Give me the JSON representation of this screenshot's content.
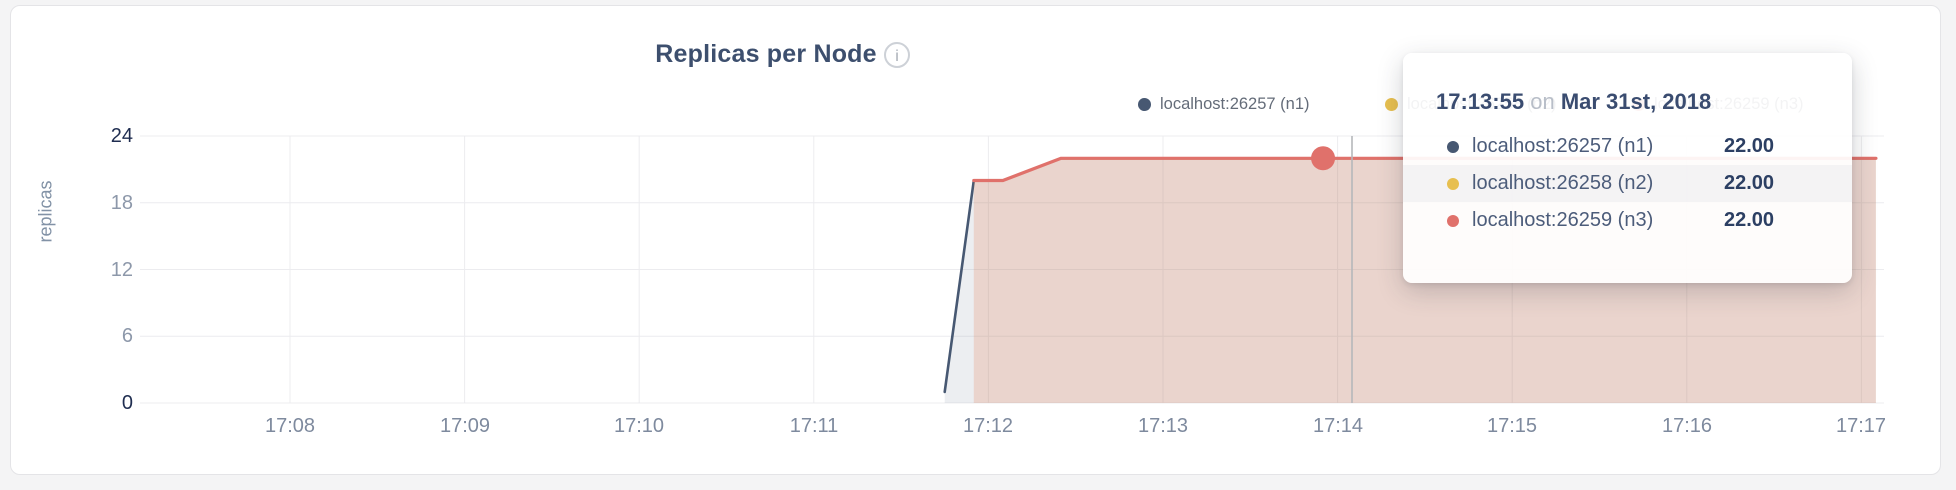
{
  "panel": {
    "info_glyph": "i"
  },
  "chart_data": {
    "type": "area",
    "title": "Replicas per Node",
    "ylabel": "replicas",
    "xlabel": "",
    "ylim": [
      0,
      24
    ],
    "yticks": [
      0,
      6,
      12,
      18,
      24
    ],
    "xticks": [
      "17:08",
      "17:09",
      "17:10",
      "17:11",
      "17:12",
      "17:13",
      "17:14",
      "17:15",
      "17:16",
      "17:17"
    ],
    "grid": true,
    "legend_position": "top-right",
    "series": [
      {
        "name": "localhost:26257 (n1)",
        "color": "#475872",
        "points": [
          [
            "17:11:45",
            1
          ],
          [
            "17:11:55",
            20
          ],
          [
            "17:12:05",
            20
          ],
          [
            "17:12:25",
            22
          ],
          [
            "17:17:05",
            22
          ]
        ]
      },
      {
        "name": "localhost:26258 (n2)",
        "color": "#e7bf4f",
        "points": [
          [
            "17:11:55",
            20
          ],
          [
            "17:12:05",
            20
          ],
          [
            "17:12:25",
            22
          ],
          [
            "17:17:05",
            22
          ]
        ]
      },
      {
        "name": "localhost:26259 (n3)",
        "color": "#e0716b",
        "points": [
          [
            "17:11:55",
            20
          ],
          [
            "17:12:05",
            20
          ],
          [
            "17:12:25",
            22
          ],
          [
            "17:17:05",
            22
          ]
        ]
      }
    ],
    "highlight_point": {
      "series": "localhost:26259 (n3)",
      "time": "17:13:55",
      "value": 22
    }
  },
  "tooltip": {
    "time": "17:13:55",
    "on_word": "on",
    "date": "Mar 31st, 2018",
    "rows": [
      {
        "label": "localhost:26257 (n1)",
        "value": "22.00",
        "color": "#475872"
      },
      {
        "label": "localhost:26258 (n2)",
        "value": "22.00",
        "color": "#e7bf4f"
      },
      {
        "label": "localhost:26259 (n3)",
        "value": "22.00",
        "color": "#e0716b"
      }
    ]
  }
}
